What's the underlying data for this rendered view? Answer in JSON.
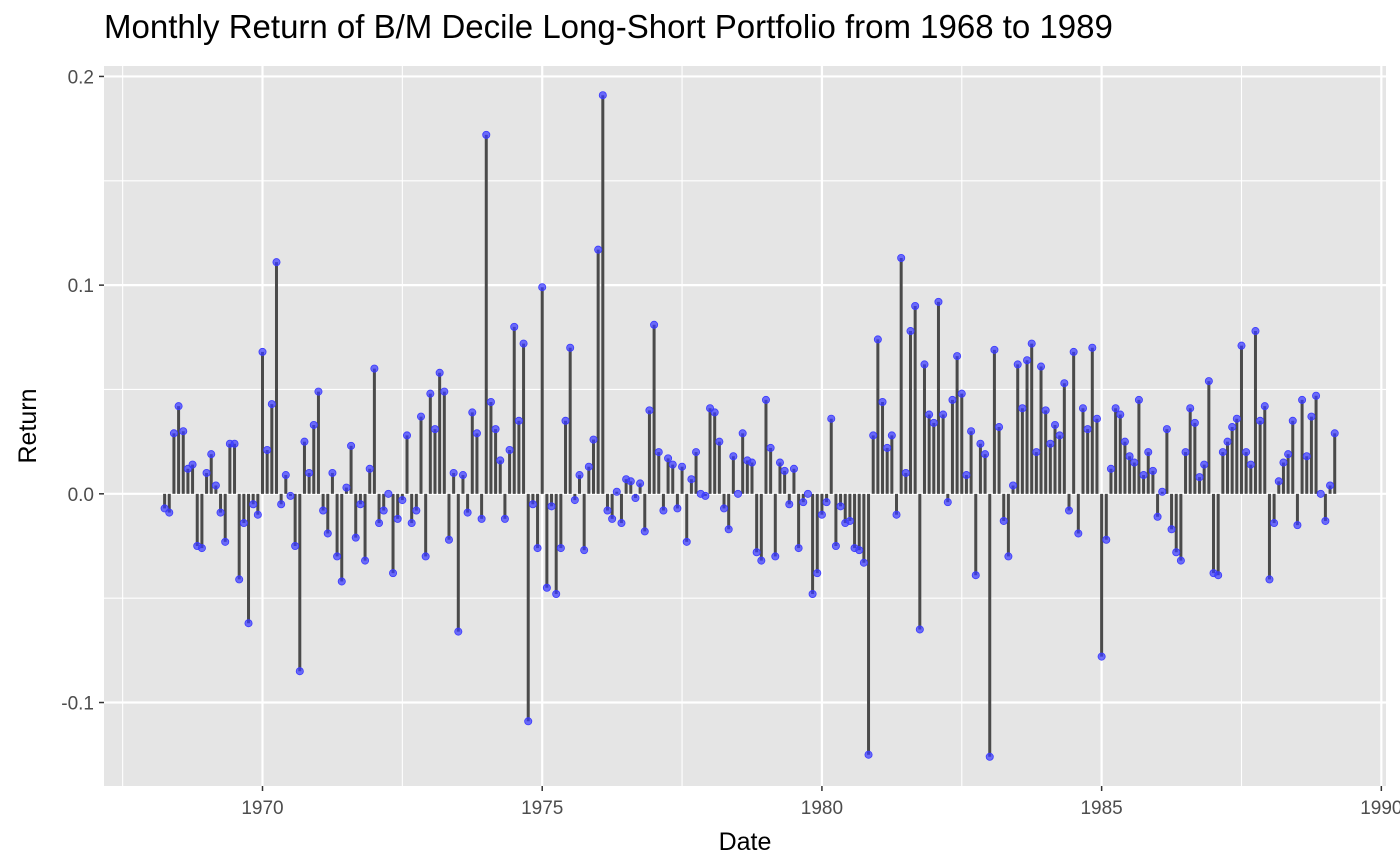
{
  "chart_data": {
    "type": "lollipop",
    "title": "Monthly Return of B/M Decile Long-Short Portfolio from 1968 to 1989",
    "xlabel": "Date",
    "ylabel": "Return",
    "x_ticks": [
      "1970",
      "1975",
      "1980",
      "1985",
      "1990"
    ],
    "y_ticks": [
      "0.2",
      "0.1",
      "0.0",
      "-0.1"
    ],
    "xlim": [
      "1967-03",
      "1990-02"
    ],
    "ylim": [
      -0.14,
      0.205
    ],
    "grid": true,
    "legend": "none",
    "colors": {
      "panel": "#e5e5e5",
      "grid": "#ffffff",
      "stem": "#4a4a4a",
      "point": "#3a3aff"
    },
    "series": [
      {
        "start": "1968-04",
        "frequency": "monthly",
        "values": [
          -0.007,
          -0.009,
          0.029,
          0.042,
          0.03,
          0.012,
          0.014,
          -0.025,
          -0.026,
          0.01,
          0.019,
          0.004,
          -0.009,
          -0.023,
          0.024,
          0.024,
          -0.041,
          -0.014,
          -0.062,
          -0.005,
          -0.01,
          0.068,
          0.021,
          0.043,
          0.111,
          -0.005,
          0.009,
          -0.001,
          -0.025,
          -0.085,
          0.025,
          0.01,
          0.033,
          0.049,
          -0.008,
          -0.019,
          0.01,
          -0.03,
          -0.042,
          0.003,
          0.023,
          -0.021,
          -0.005,
          -0.032,
          0.012,
          0.06,
          -0.014,
          -0.008,
          0.0,
          -0.038,
          -0.012,
          -0.003,
          0.028,
          -0.014,
          -0.008,
          0.037,
          -0.03,
          0.048,
          0.031,
          0.058,
          0.049,
          -0.022,
          0.01,
          -0.066,
          0.009,
          -0.009,
          0.039,
          0.029,
          -0.012,
          0.172,
          0.044,
          0.031,
          0.016,
          -0.012,
          0.021,
          0.08,
          0.035,
          0.072,
          -0.109,
          -0.005,
          -0.026,
          0.099,
          -0.045,
          -0.006,
          -0.048,
          -0.026,
          0.035,
          0.07,
          -0.003,
          0.009,
          -0.027,
          0.013,
          0.026,
          0.117,
          0.191,
          -0.008,
          -0.012,
          0.001,
          -0.014,
          0.007,
          0.006,
          -0.002,
          0.005,
          -0.018,
          0.04,
          0.081,
          0.02,
          -0.008,
          0.017,
          0.014,
          -0.007,
          0.013,
          -0.023,
          0.007,
          0.02,
          0.0,
          -0.001,
          0.041,
          0.039,
          0.025,
          -0.007,
          -0.017,
          0.018,
          0.0,
          0.029,
          0.016,
          0.015,
          -0.028,
          -0.032,
          0.045,
          0.022,
          -0.03,
          0.015,
          0.011,
          -0.005,
          0.012,
          -0.026,
          -0.004,
          0.0,
          -0.048,
          -0.038,
          -0.01,
          -0.004,
          0.036,
          -0.025,
          -0.006,
          -0.014,
          -0.013,
          -0.026,
          -0.027,
          -0.033,
          -0.125,
          0.028,
          0.074,
          0.044,
          0.022,
          0.028,
          -0.01,
          0.113,
          0.01,
          0.078,
          0.09,
          -0.065,
          0.062,
          0.038,
          0.034,
          0.092,
          0.038,
          -0.004,
          0.045,
          0.066,
          0.048,
          0.009,
          0.03,
          -0.039,
          0.024,
          0.019,
          -0.126,
          0.069,
          0.032,
          -0.013,
          -0.03,
          0.004,
          0.062,
          0.041,
          0.064,
          0.072,
          0.02,
          0.061,
          0.04,
          0.024,
          0.033,
          0.028,
          0.053,
          -0.008,
          0.068,
          -0.019,
          0.041,
          0.031,
          0.07,
          0.036,
          -0.078,
          -0.022,
          0.012,
          0.041,
          0.038,
          0.025,
          0.018,
          0.015,
          0.045,
          0.009,
          0.02,
          0.011,
          -0.011,
          0.001,
          0.031,
          -0.017,
          -0.028,
          -0.032,
          0.02,
          0.041,
          0.034,
          0.008,
          0.014,
          0.054,
          -0.038,
          -0.039,
          0.02,
          0.025,
          0.032,
          0.036,
          0.071,
          0.02,
          0.014,
          0.078,
          0.035,
          0.042,
          -0.041,
          -0.014,
          0.006,
          0.015,
          0.019,
          0.035,
          -0.015,
          0.045,
          0.018,
          0.037,
          0.047,
          0.0,
          -0.013,
          0.004,
          0.029
        ]
      }
    ]
  }
}
